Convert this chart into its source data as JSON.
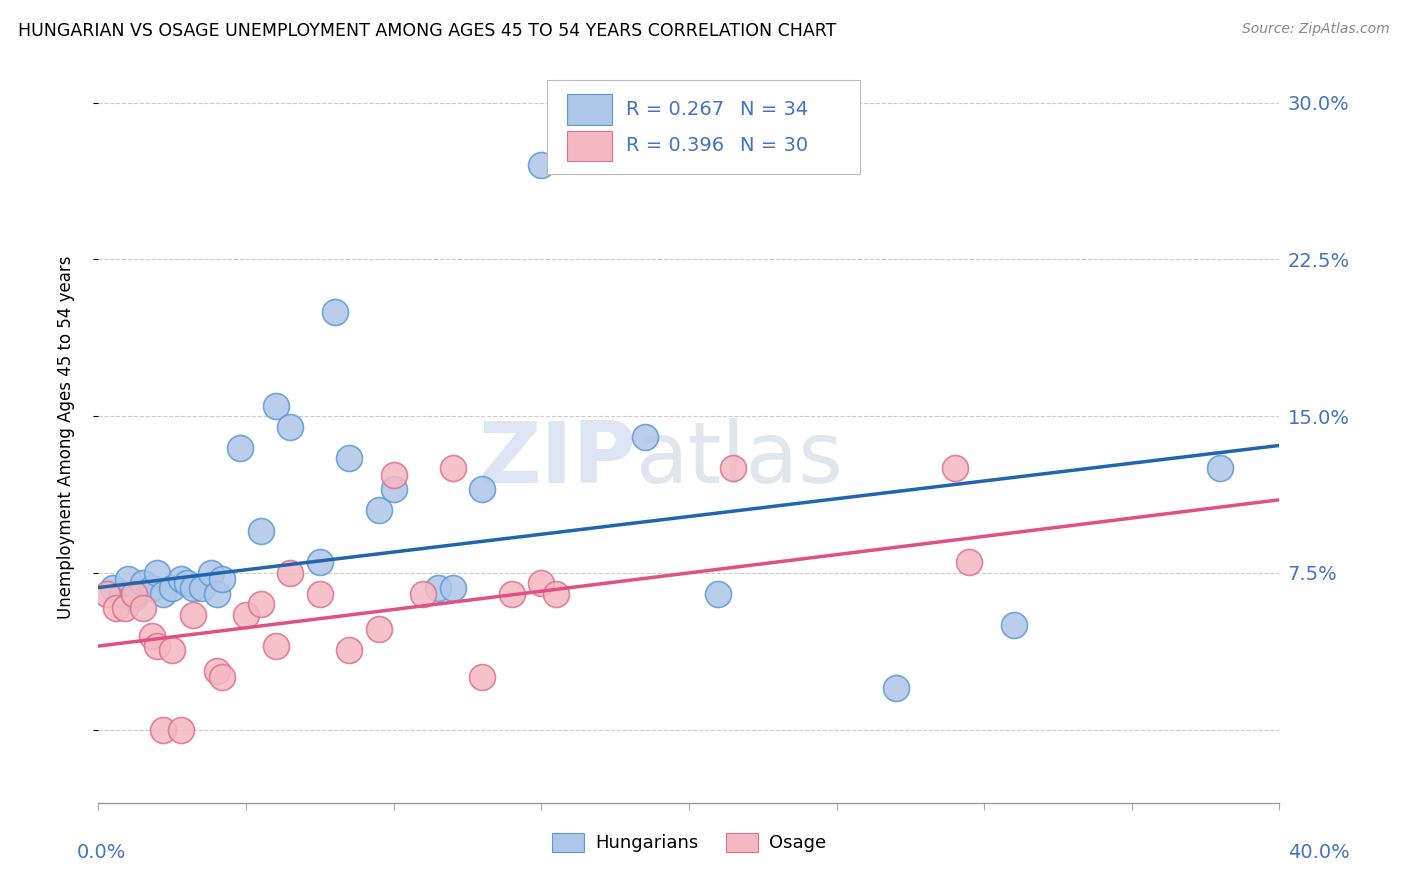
{
  "title": "HUNGARIAN VS OSAGE UNEMPLOYMENT AMONG AGES 45 TO 54 YEARS CORRELATION CHART",
  "source": "Source: ZipAtlas.com",
  "ylabel": "Unemployment Among Ages 45 to 54 years",
  "yticks": [
    0.0,
    0.075,
    0.15,
    0.225,
    0.3
  ],
  "ytick_labels": [
    "",
    "7.5%",
    "15.0%",
    "22.5%",
    "30.0%"
  ],
  "xlim": [
    0.0,
    0.4
  ],
  "ylim": [
    -0.035,
    0.315
  ],
  "legend_r1": "R = 0.267",
  "legend_n1": "N = 34",
  "legend_r2": "R = 0.396",
  "legend_n2": "N = 30",
  "blue_color": "#aec6e8",
  "blue_edge": "#5b9bd5",
  "pink_color": "#f4b8c1",
  "pink_edge": "#e07090",
  "trendline_blue": "#2166ac",
  "trendline_pink": "#e05080",
  "legend_text_color": "#4472c4",
  "watermark_color": "#ccd8e8",
  "blue_scatter_x": [
    0.005,
    0.008,
    0.01,
    0.012,
    0.015,
    0.018,
    0.02,
    0.022,
    0.025,
    0.028,
    0.03,
    0.032,
    0.035,
    0.038,
    0.04,
    0.042,
    0.048,
    0.055,
    0.06,
    0.065,
    0.075,
    0.08,
    0.085,
    0.095,
    0.1,
    0.115,
    0.12,
    0.13,
    0.15,
    0.185,
    0.21,
    0.27,
    0.31,
    0.38
  ],
  "blue_scatter_y": [
    0.068,
    0.065,
    0.072,
    0.063,
    0.07,
    0.068,
    0.075,
    0.065,
    0.068,
    0.072,
    0.07,
    0.068,
    0.068,
    0.075,
    0.065,
    0.072,
    0.135,
    0.095,
    0.155,
    0.145,
    0.08,
    0.2,
    0.13,
    0.105,
    0.115,
    0.068,
    0.068,
    0.115,
    0.27,
    0.14,
    0.065,
    0.02,
    0.05,
    0.125
  ],
  "pink_scatter_x": [
    0.003,
    0.006,
    0.009,
    0.012,
    0.015,
    0.018,
    0.02,
    0.022,
    0.025,
    0.028,
    0.032,
    0.04,
    0.042,
    0.05,
    0.055,
    0.06,
    0.065,
    0.075,
    0.085,
    0.095,
    0.1,
    0.11,
    0.12,
    0.13,
    0.14,
    0.15,
    0.155,
    0.215,
    0.29,
    0.295
  ],
  "pink_scatter_y": [
    0.065,
    0.058,
    0.058,
    0.065,
    0.058,
    0.045,
    0.04,
    0.0,
    0.038,
    0.0,
    0.055,
    0.028,
    0.025,
    0.055,
    0.06,
    0.04,
    0.075,
    0.065,
    0.038,
    0.048,
    0.122,
    0.065,
    0.125,
    0.025,
    0.065,
    0.07,
    0.065,
    0.125,
    0.125,
    0.08
  ],
  "blue_trend_x": [
    0.0,
    0.4
  ],
  "blue_trend_y": [
    0.068,
    0.136
  ],
  "pink_trend_x": [
    0.0,
    0.4
  ],
  "pink_trend_y": [
    0.04,
    0.11
  ]
}
